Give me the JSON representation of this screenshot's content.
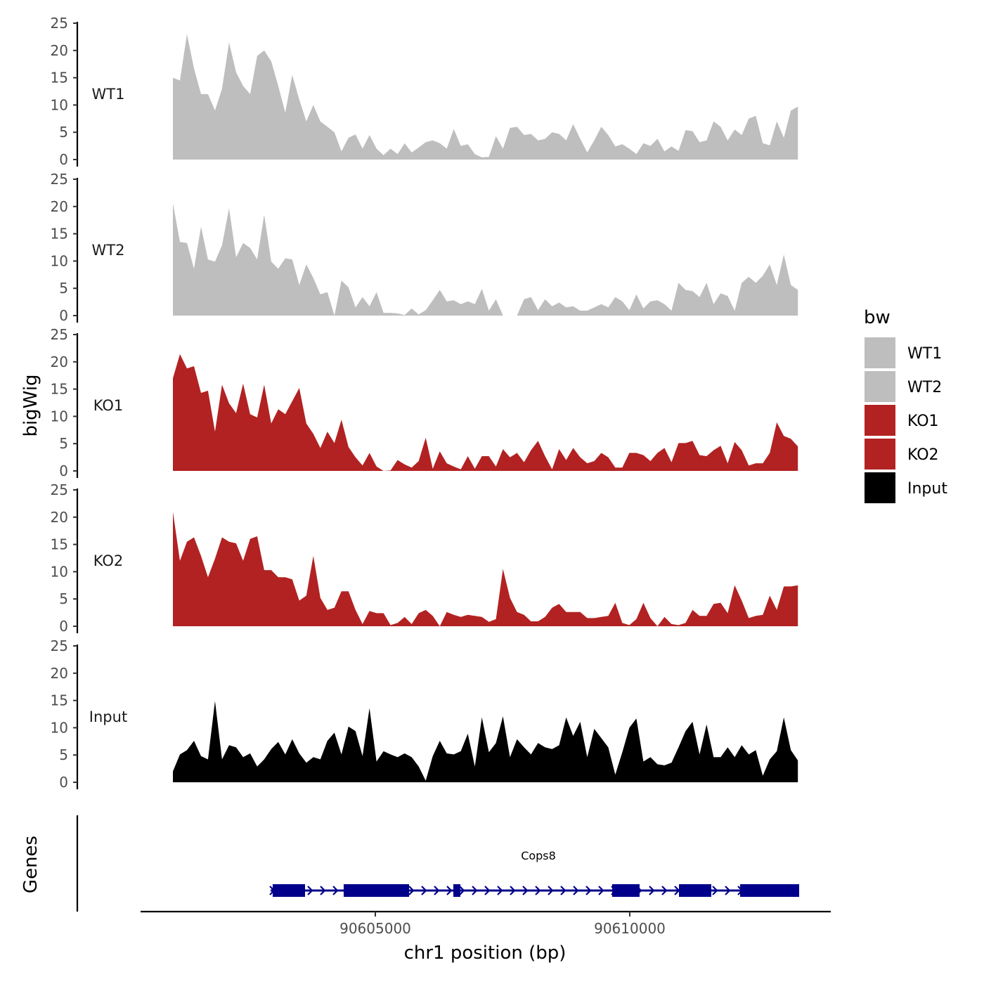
{
  "chart_data": {
    "type": "area",
    "ylabel": "bigWig",
    "xlabel": "chr1 position (bp)",
    "ylim": [
      0,
      25
    ],
    "yticks": [
      "0",
      "5",
      "10",
      "15",
      "20",
      "25"
    ],
    "xticks": [
      {
        "value": 90605000,
        "label": "90605000"
      },
      {
        "value": 90610000,
        "label": "90610000"
      }
    ],
    "x_start": 90601022,
    "x_step": 138,
    "legend": {
      "title": "bw",
      "position": "right"
    },
    "series": [
      {
        "name": "WT1",
        "color": "#bebebe",
        "values": [
          15,
          14.5,
          23,
          16.7,
          12,
          12,
          9,
          13,
          21.5,
          16,
          13.5,
          12,
          19,
          20,
          18,
          13.5,
          8.6,
          15.5,
          11,
          7,
          10,
          7,
          6,
          5,
          1.5,
          4,
          4.6,
          2,
          4.5,
          2,
          0.8,
          2,
          1,
          3,
          1.3,
          2.2,
          3.2,
          3.5,
          3,
          2,
          5.6,
          2.5,
          2.8,
          1,
          0.4,
          0.5,
          4.3,
          2,
          5.8,
          6,
          4.5,
          4.7,
          3.5,
          3.8,
          5,
          4.7,
          3.5,
          6.5,
          3.8,
          1.3,
          3.5,
          6,
          4.5,
          2.4,
          2.8,
          2,
          1,
          3,
          2.5,
          3.8,
          1.5,
          2.4,
          1.6,
          5.4,
          5.2,
          3.2,
          3.5,
          7,
          6,
          3.5,
          5.5,
          4.5,
          7.5,
          8,
          3,
          2.6,
          7,
          4,
          9,
          9.7
        ]
      },
      {
        "name": "WT2",
        "color": "#bebebe",
        "values": [
          20.6,
          13.5,
          13.3,
          8.6,
          16.3,
          10.3,
          9.9,
          12.9,
          19.7,
          10.7,
          13.3,
          12.4,
          10.3,
          18.5,
          9.9,
          8.6,
          10.5,
          10.3,
          5.6,
          9.4,
          6.9,
          3.9,
          4.3,
          0,
          6.4,
          5.2,
          1.5,
          3.4,
          1.7,
          4.3,
          0.5,
          0.5,
          0.4,
          0.1,
          1.3,
          0.2,
          1,
          2.8,
          4.7,
          2.6,
          2.8,
          2.1,
          2.6,
          2.1,
          4.9,
          0.9,
          3,
          0,
          0,
          0,
          3,
          3.4,
          1,
          3,
          1.7,
          2.4,
          1.5,
          1.7,
          0.9,
          0.9,
          1.5,
          2.1,
          1.5,
          3.4,
          2.6,
          1,
          3.9,
          1.3,
          2.6,
          2.8,
          2.1,
          0.9,
          6,
          4.7,
          4.5,
          3.4,
          6,
          2.1,
          4.1,
          3.6,
          0.9,
          6,
          7.1,
          6,
          7.3,
          9.4,
          5.6,
          11.2,
          5.6,
          4.7
        ]
      },
      {
        "name": "KO1",
        "color": "#b22222",
        "values": [
          17,
          21.4,
          18.8,
          19.2,
          14.3,
          14.7,
          7.2,
          15.8,
          12.4,
          10.6,
          16,
          10.4,
          9.8,
          15.8,
          8.7,
          11.3,
          10.4,
          12.8,
          15.2,
          8.7,
          6.8,
          4.2,
          7.2,
          5.1,
          9.4,
          4.4,
          2.5,
          1,
          3.3,
          0.8,
          0,
          0.1,
          2,
          1.2,
          0.6,
          1.8,
          6.1,
          0.4,
          3.6,
          1.4,
          0.8,
          0.3,
          2.7,
          0.4,
          2.7,
          2.7,
          0.8,
          4,
          2.5,
          3.3,
          1.6,
          3.8,
          5.5,
          2.7,
          0.3,
          4,
          2,
          4.2,
          2.5,
          1.4,
          1.8,
          3.3,
          2.5,
          0.6,
          0.6,
          3.3,
          3.3,
          2.9,
          1.8,
          3.3,
          4.2,
          1.6,
          5.1,
          5.1,
          5.5,
          2.9,
          2.7,
          3.8,
          4.6,
          1.4,
          5.3,
          3.8,
          1,
          1.4,
          1.4,
          3.3,
          8.9,
          6.4,
          5.9,
          4.5
        ]
      },
      {
        "name": "KO2",
        "color": "#b22222",
        "values": [
          21,
          12,
          15.5,
          16.3,
          12.9,
          9,
          12.4,
          16.3,
          15.5,
          15.2,
          12,
          16,
          16.5,
          10.3,
          10.3,
          9,
          9,
          8.6,
          4.7,
          5.6,
          12.9,
          5.2,
          3,
          3.4,
          6.4,
          6.4,
          3,
          0.4,
          2.8,
          2.4,
          2.4,
          0.2,
          0.6,
          1.7,
          0.4,
          2.4,
          3,
          1.9,
          0,
          2.6,
          2.1,
          1.7,
          2.1,
          1.9,
          1.7,
          0.8,
          1.3,
          10.5,
          5.2,
          2.6,
          2.1,
          0.9,
          0.9,
          1.7,
          3.4,
          4.1,
          2.6,
          2.6,
          2.6,
          1.5,
          1.5,
          1.7,
          1.9,
          4.3,
          0.6,
          0.2,
          1.3,
          4.3,
          1.5,
          0,
          1.7,
          0.4,
          0.2,
          0.6,
          3,
          1.9,
          1.9,
          4.1,
          4.3,
          2.4,
          7.5,
          4.7,
          1.5,
          1.9,
          2.1,
          5.6,
          3,
          7.3,
          7.3,
          7.5
        ]
      },
      {
        "name": "Input",
        "color": "#000000",
        "values": [
          2,
          5.1,
          5.9,
          7.6,
          4.8,
          4.2,
          14.9,
          4.2,
          6.8,
          6.4,
          4.6,
          5.3,
          2.9,
          4.2,
          6.1,
          7.4,
          5.1,
          7.9,
          5.3,
          3.6,
          4.6,
          4.2,
          7.6,
          9.1,
          5.1,
          10.2,
          9.4,
          4.8,
          13.6,
          3.8,
          5.7,
          5.1,
          4.6,
          5.3,
          4.6,
          2.9,
          0.3,
          4.8,
          7.6,
          5.3,
          5.1,
          5.7,
          8.9,
          2.9,
          11.9,
          5.5,
          7.2,
          12.1,
          4.6,
          7.9,
          6.4,
          5.1,
          7.2,
          6.4,
          6.1,
          6.8,
          11.9,
          8.5,
          11.1,
          4.6,
          9.8,
          8.1,
          6.4,
          1.4,
          5.5,
          10,
          11.7,
          3.8,
          4.6,
          3.3,
          3.1,
          3.6,
          6.4,
          9.4,
          11.1,
          5.1,
          10.6,
          4.6,
          4.6,
          6.4,
          4.6,
          6.8,
          5.1,
          5.9,
          1.2,
          4.2,
          5.7,
          11.9,
          5.9,
          4
        ]
      }
    ],
    "genes": {
      "panel_label": "Genes",
      "color": "#00008b",
      "items": [
        {
          "name": "Cops8",
          "strand": "+",
          "start": 90602942,
          "end": 90613329,
          "exons": [
            [
              90602983,
              90603619
            ],
            [
              90604378,
              90605663
            ],
            [
              90606533,
              90606671
            ],
            [
              90609655,
              90610193
            ],
            [
              90610967,
              90611602
            ],
            [
              90612169,
              90613329
            ]
          ]
        }
      ]
    }
  }
}
